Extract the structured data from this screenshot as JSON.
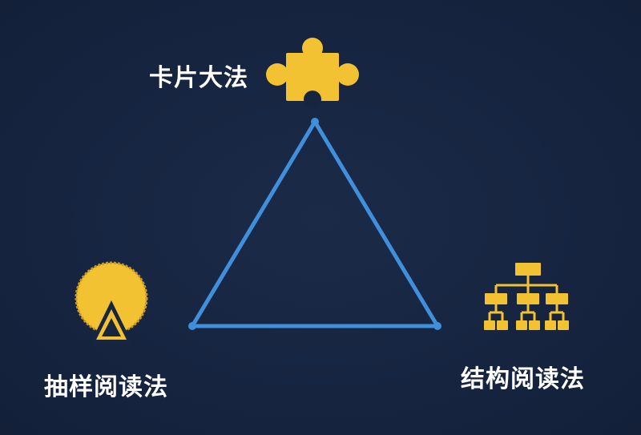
{
  "nodes": {
    "top": {
      "label": "卡片大法",
      "icon": "puzzle-piece-icon"
    },
    "left": {
      "label": "抽样阅读法",
      "icon": "pie-slice-icon"
    },
    "right": {
      "label": "结构阅读法",
      "icon": "hierarchy-icon"
    }
  },
  "colors": {
    "background": "#17263f",
    "triangle": "#3f8fdc",
    "icon": "#f2c232",
    "icon_outline": "#d9a920",
    "text": "#ffffff"
  }
}
